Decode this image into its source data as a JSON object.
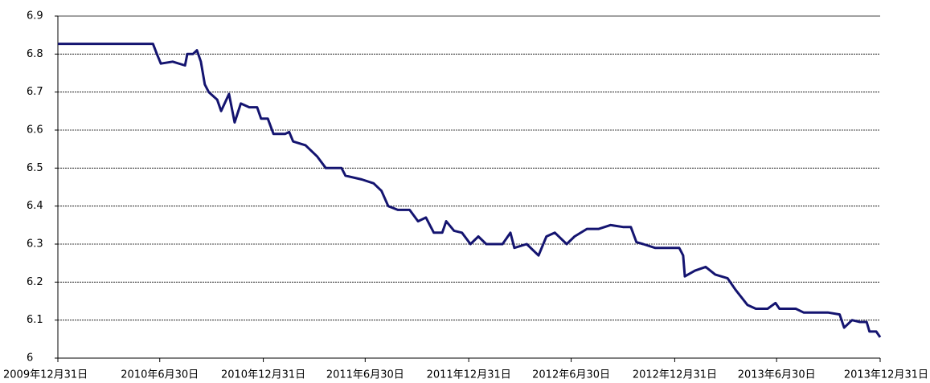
{
  "chart_data": {
    "type": "line",
    "x": [
      "2009-12-31",
      "2010-06-03",
      "2010-06-18",
      "2010-06-25",
      "2010-07-02",
      "2010-07-23",
      "2010-08-14",
      "2010-08-18",
      "2010-08-28",
      "2010-09-04",
      "2010-09-11",
      "2010-09-18",
      "2010-09-25",
      "2010-10-10",
      "2010-10-17",
      "2010-10-31",
      "2010-11-10",
      "2010-11-21",
      "2010-12-06",
      "2010-12-20",
      "2010-12-27",
      "2011-01-08",
      "2011-01-18",
      "2011-02-08",
      "2011-02-15",
      "2011-02-22",
      "2011-03-16",
      "2011-04-06",
      "2011-04-21",
      "2011-05-19",
      "2011-05-26",
      "2011-06-24",
      "2011-07-15",
      "2011-07-29",
      "2011-08-10",
      "2011-08-27",
      "2011-09-17",
      "2011-10-02",
      "2011-10-16",
      "2011-10-30",
      "2011-11-14",
      "2011-11-21",
      "2011-12-05",
      "2011-12-19",
      "2012-01-03",
      "2012-01-17",
      "2012-01-31",
      "2012-02-14",
      "2012-02-29",
      "2012-03-14",
      "2012-03-21",
      "2012-04-12",
      "2012-05-03",
      "2012-05-17",
      "2012-06-01",
      "2012-06-22",
      "2012-07-06",
      "2012-07-28",
      "2012-08-18",
      "2012-09-08",
      "2012-09-30",
      "2012-10-14",
      "2012-10-24",
      "2012-11-05",
      "2012-11-26",
      "2012-12-17",
      "2013-01-08",
      "2013-01-15",
      "2013-01-18",
      "2013-02-05",
      "2013-02-24",
      "2013-03-13",
      "2013-04-04",
      "2013-04-18",
      "2013-05-09",
      "2013-05-24",
      "2013-06-14",
      "2013-06-28",
      "2013-07-05",
      "2013-08-03",
      "2013-08-17",
      "2013-09-29",
      "2013-10-20",
      "2013-10-28",
      "2013-11-11",
      "2013-11-25",
      "2013-12-07",
      "2013-12-12",
      "2013-12-24",
      "2013-12-31"
    ],
    "series": [
      {
        "color": "#141470",
        "values": [
          6.827,
          6.827,
          6.827,
          6.8,
          6.775,
          6.78,
          6.77,
          6.8,
          6.8,
          6.81,
          6.78,
          6.72,
          6.7,
          6.68,
          6.65,
          6.695,
          6.62,
          6.67,
          6.66,
          6.66,
          6.63,
          6.63,
          6.59,
          6.59,
          6.595,
          6.57,
          6.56,
          6.53,
          6.5,
          6.5,
          6.48,
          6.47,
          6.46,
          6.44,
          6.4,
          6.39,
          6.39,
          6.36,
          6.37,
          6.33,
          6.33,
          6.36,
          6.335,
          6.33,
          6.3,
          6.32,
          6.3,
          6.3,
          6.3,
          6.33,
          6.29,
          6.3,
          6.27,
          6.32,
          6.33,
          6.3,
          6.32,
          6.34,
          6.34,
          6.35,
          6.345,
          6.345,
          6.305,
          6.3,
          6.29,
          6.29,
          6.29,
          6.27,
          6.215,
          6.23,
          6.24,
          6.22,
          6.21,
          6.18,
          6.14,
          6.13,
          6.13,
          6.145,
          6.13,
          6.13,
          6.12,
          6.12,
          6.115,
          6.08,
          6.1,
          6.095,
          6.095,
          6.07,
          6.07,
          6.055
        ]
      }
    ],
    "xlim": [
      "2009-12-31",
      "2013-12-31"
    ],
    "xticks": [
      {
        "value": "2009-12-31",
        "label": "2009年12月31日"
      },
      {
        "value": "2010-06-30",
        "label": "2010年6月30日"
      },
      {
        "value": "2010-12-31",
        "label": "2010年12月31日"
      },
      {
        "value": "2011-06-30",
        "label": "2011年6月30日"
      },
      {
        "value": "2011-12-31",
        "label": "2011年12月31日"
      },
      {
        "value": "2012-06-30",
        "label": "2012年6月30日"
      },
      {
        "value": "2012-12-31",
        "label": "2012年12月31日"
      },
      {
        "value": "2013-06-30",
        "label": "2013年6月30日"
      },
      {
        "value": "2013-12-31",
        "label": "2013年12月31日"
      }
    ],
    "ylim": [
      6,
      6.9
    ],
    "yticks": [
      6,
      6.1,
      6.2,
      6.3,
      6.4,
      6.5,
      6.6,
      6.7,
      6.8,
      6.9
    ],
    "grid": true
  }
}
